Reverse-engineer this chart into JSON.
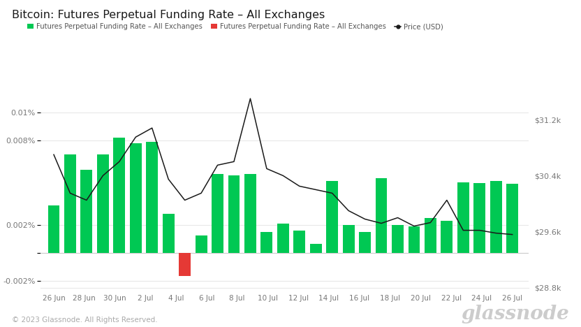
{
  "title": "Bitcoin: Futures Perpetual Funding Rate – All Exchanges",
  "x_labels": [
    "26 Jun",
    "28 Jun",
    "30 Jun",
    "2 Jul",
    "4 Jul",
    "6 Jul",
    "8 Jul",
    "10 Jul",
    "12 Jul",
    "14 Jul",
    "16 Jul",
    "18 Jul",
    "20 Jul",
    "22 Jul",
    "24 Jul",
    "26 Jul"
  ],
  "bar_values": [
    0.0034,
    0.007,
    0.0059,
    0.007,
    0.0082,
    0.0078,
    0.0079,
    0.0028,
    -0.00165,
    0.00125,
    0.0056,
    0.0055,
    0.0056,
    0.0015,
    0.0021,
    0.0016,
    0.00065,
    0.0051,
    0.002,
    0.0015,
    0.0053,
    0.002,
    0.0019,
    0.0025,
    0.0023,
    0.005,
    0.00495,
    0.0051,
    0.0049
  ],
  "price_values": [
    30700,
    30150,
    30050,
    30400,
    30600,
    30950,
    31080,
    30350,
    30050,
    30150,
    30550,
    30600,
    31500,
    30500,
    30400,
    30250,
    30200,
    30150,
    29900,
    29780,
    29720,
    29800,
    29680,
    29730,
    30050,
    29620,
    29620,
    29580,
    29560
  ],
  "ylim_left": [
    -0.0025,
    0.0115
  ],
  "ylim_right": [
    28800,
    31600
  ],
  "yticks_left": [
    -0.002,
    0.0,
    0.002,
    0.008,
    0.01
  ],
  "yticks_right": [
    28800,
    29600,
    30400,
    31200
  ],
  "ytick_labels_right": [
    "$28.8k",
    "$29.6k",
    "$30.4k",
    "$31.2k"
  ],
  "ytick_labels_left": [
    "-0.002%",
    "",
    "0.002%",
    "0.008%",
    "0.01%"
  ],
  "green_color": "#00C853",
  "red_color": "#E53935",
  "price_color": "#1a1a1a",
  "background_color": "#FFFFFF",
  "grid_color": "#E8E8E8",
  "legend_labels": [
    "Futures Perpetual Funding Rate – All Exchanges",
    "Futures Perpetual Funding Rate – All Exchanges",
    "Price (USD)"
  ],
  "legend_colors": [
    "#00C853",
    "#E53935",
    "#1a1a1a"
  ],
  "footer_text": "© 2023 Glassnode. All Rights Reserved.",
  "watermark": "glassnode"
}
